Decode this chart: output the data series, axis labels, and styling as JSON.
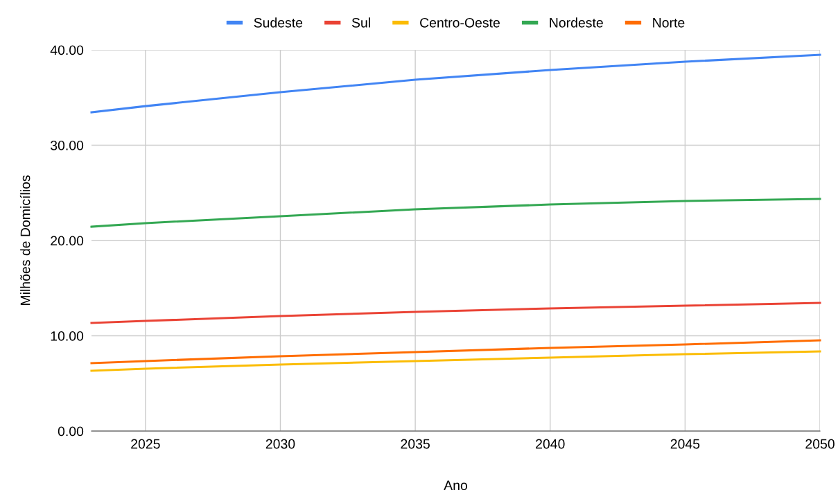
{
  "chart_data": {
    "type": "line",
    "xlabel": "Ano",
    "ylabel": "Milhões de Domicílios",
    "x": [
      2023,
      2025,
      2030,
      2035,
      2040,
      2045,
      2050
    ],
    "series": [
      {
        "name": "Sudeste",
        "color": "#4285f4",
        "values": [
          33.45,
          34.1,
          35.56,
          36.87,
          37.89,
          38.76,
          39.49
        ]
      },
      {
        "name": "Sul",
        "color": "#ea4335",
        "values": [
          11.35,
          11.56,
          12.07,
          12.51,
          12.87,
          13.16,
          13.45
        ]
      },
      {
        "name": "Centro-Oeste",
        "color": "#fbbc04",
        "values": [
          6.33,
          6.55,
          6.98,
          7.35,
          7.71,
          8.07,
          8.36
        ]
      },
      {
        "name": "Nordeste",
        "color": "#34a853",
        "values": [
          21.45,
          21.82,
          22.55,
          23.27,
          23.78,
          24.15,
          24.36
        ]
      },
      {
        "name": "Norte",
        "color": "#ff6d01",
        "values": [
          7.13,
          7.35,
          7.85,
          8.29,
          8.73,
          9.09,
          9.53
        ]
      }
    ],
    "xlim": [
      2023,
      2050
    ],
    "xticks": [
      2025,
      2030,
      2035,
      2040,
      2045,
      2050
    ],
    "ylim": [
      0,
      40
    ],
    "yticks": [
      {
        "value": 0,
        "label": "0.00"
      },
      {
        "value": 10,
        "label": "10.00"
      },
      {
        "value": 20,
        "label": "20.00"
      },
      {
        "value": 30,
        "label": "30.00"
      },
      {
        "value": 40,
        "label": "40.00"
      }
    ],
    "grid": true,
    "legend": "top",
    "marker": "none",
    "line_style": "solid"
  }
}
